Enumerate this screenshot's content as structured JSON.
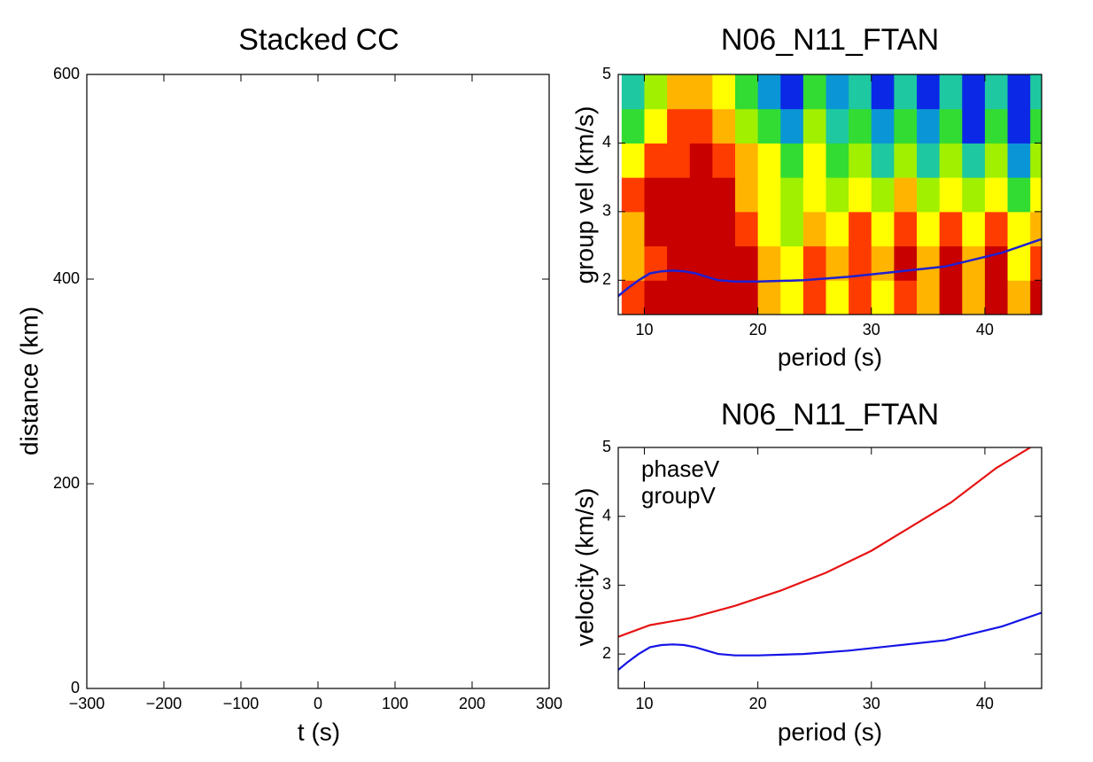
{
  "chart_data": [
    {
      "type": "line",
      "title": "Stacked CC",
      "x_label": "t (s)",
      "y_label": "distance (km)",
      "xlim": [
        -300,
        300
      ],
      "xticks": [
        {
          "value": -300,
          "label": "−300"
        },
        {
          "value": -200,
          "label": "−200"
        },
        {
          "value": -100,
          "label": "−100"
        },
        0,
        100,
        200,
        300
      ],
      "ylim": [
        0,
        600
      ],
      "yticks": [
        0,
        200,
        400,
        600
      ],
      "series": []
    },
    {
      "type": "heatmap",
      "title": "N06_N11_FTAN",
      "x_label": "period (s)",
      "y_label": "group vel (km/s)",
      "xlim": [
        7.7,
        45
      ],
      "xticks": [
        10,
        20,
        30,
        40
      ],
      "ylim": [
        1.5,
        5
      ],
      "yticks": [
        2,
        3,
        4,
        5
      ],
      "x": [
        9,
        11,
        13,
        15,
        17,
        19,
        21,
        23,
        25,
        27,
        29,
        31,
        33,
        35,
        37,
        39,
        41,
        43,
        45
      ],
      "y": [
        1.75,
        2.25,
        2.75,
        3.25,
        3.75,
        4.25,
        4.75
      ],
      "z": [
        [
          7,
          8,
          8,
          8,
          8,
          8,
          6,
          5,
          7,
          5,
          7,
          5,
          7,
          6,
          8,
          6,
          8,
          6,
          8
        ],
        [
          6,
          7,
          8,
          8,
          8,
          8,
          6,
          5,
          7,
          6,
          7,
          6,
          8,
          6,
          8,
          6,
          8,
          5,
          7
        ],
        [
          6,
          8,
          8,
          8,
          8,
          7,
          5,
          4,
          6,
          5,
          7,
          5,
          7,
          5,
          7,
          5,
          7,
          5,
          6
        ],
        [
          7,
          8,
          8,
          8,
          8,
          6,
          5,
          4,
          5,
          4,
          5,
          4,
          6,
          4,
          5,
          4,
          5,
          3,
          5
        ],
        [
          5,
          7,
          7,
          8,
          7,
          6,
          5,
          3,
          5,
          3,
          4,
          2,
          4,
          2,
          4,
          2,
          4,
          1,
          4
        ],
        [
          3,
          5,
          7,
          7,
          6,
          4,
          3,
          1,
          4,
          2,
          3,
          1,
          3,
          1,
          3,
          0,
          3,
          0,
          3
        ],
        [
          2,
          4,
          6,
          6,
          5,
          3,
          1,
          0,
          3,
          1,
          2,
          0,
          2,
          0,
          2,
          0,
          2,
          0,
          2
        ]
      ],
      "colormap": [
        "#0a28e6",
        "#0a96d6",
        "#1ec8a0",
        "#32dc32",
        "#a0f000",
        "#ffff00",
        "#ffb400",
        "#ff3c00",
        "#c80000"
      ],
      "line": {
        "color": "#2020d0",
        "x": [
          7.7,
          8.5,
          9.5,
          10.5,
          11.5,
          12.5,
          13.5,
          14.5,
          15.5,
          16.5,
          18,
          20,
          24,
          28,
          32,
          36.5,
          41.5,
          45
        ],
        "values": [
          1.77,
          1.88,
          2.0,
          2.1,
          2.13,
          2.14,
          2.13,
          2.1,
          2.05,
          2.0,
          1.98,
          1.98,
          2.0,
          2.05,
          2.12,
          2.2,
          2.4,
          2.6
        ]
      }
    },
    {
      "type": "line",
      "title": "N06_N11_FTAN",
      "x_label": "period (s)",
      "y_label": "velocity (km/s)",
      "xlim": [
        7.7,
        45
      ],
      "xticks": [
        10,
        20,
        30,
        40
      ],
      "ylim": [
        1.5,
        5
      ],
      "yticks": [
        2,
        3,
        4,
        5
      ],
      "series": [
        {
          "name": "phaseV",
          "color": "#e61414",
          "x": [
            7.7,
            10.5,
            14,
            18,
            22,
            26,
            30,
            33,
            37,
            41,
            44
          ],
          "values": [
            2.25,
            2.42,
            2.52,
            2.7,
            2.92,
            3.18,
            3.5,
            3.8,
            4.2,
            4.7,
            5.0
          ]
        },
        {
          "name": "groupV",
          "color": "#1414e6",
          "x": [
            7.7,
            8.5,
            9.5,
            10.5,
            11.5,
            12.5,
            13.5,
            14.5,
            15.5,
            16.5,
            18,
            20,
            24,
            28,
            32,
            36.5,
            41.5,
            45
          ],
          "values": [
            1.77,
            1.88,
            2.0,
            2.1,
            2.13,
            2.14,
            2.13,
            2.1,
            2.05,
            2.0,
            1.98,
            1.98,
            2.0,
            2.05,
            2.12,
            2.2,
            2.4,
            2.6
          ]
        }
      ]
    }
  ]
}
